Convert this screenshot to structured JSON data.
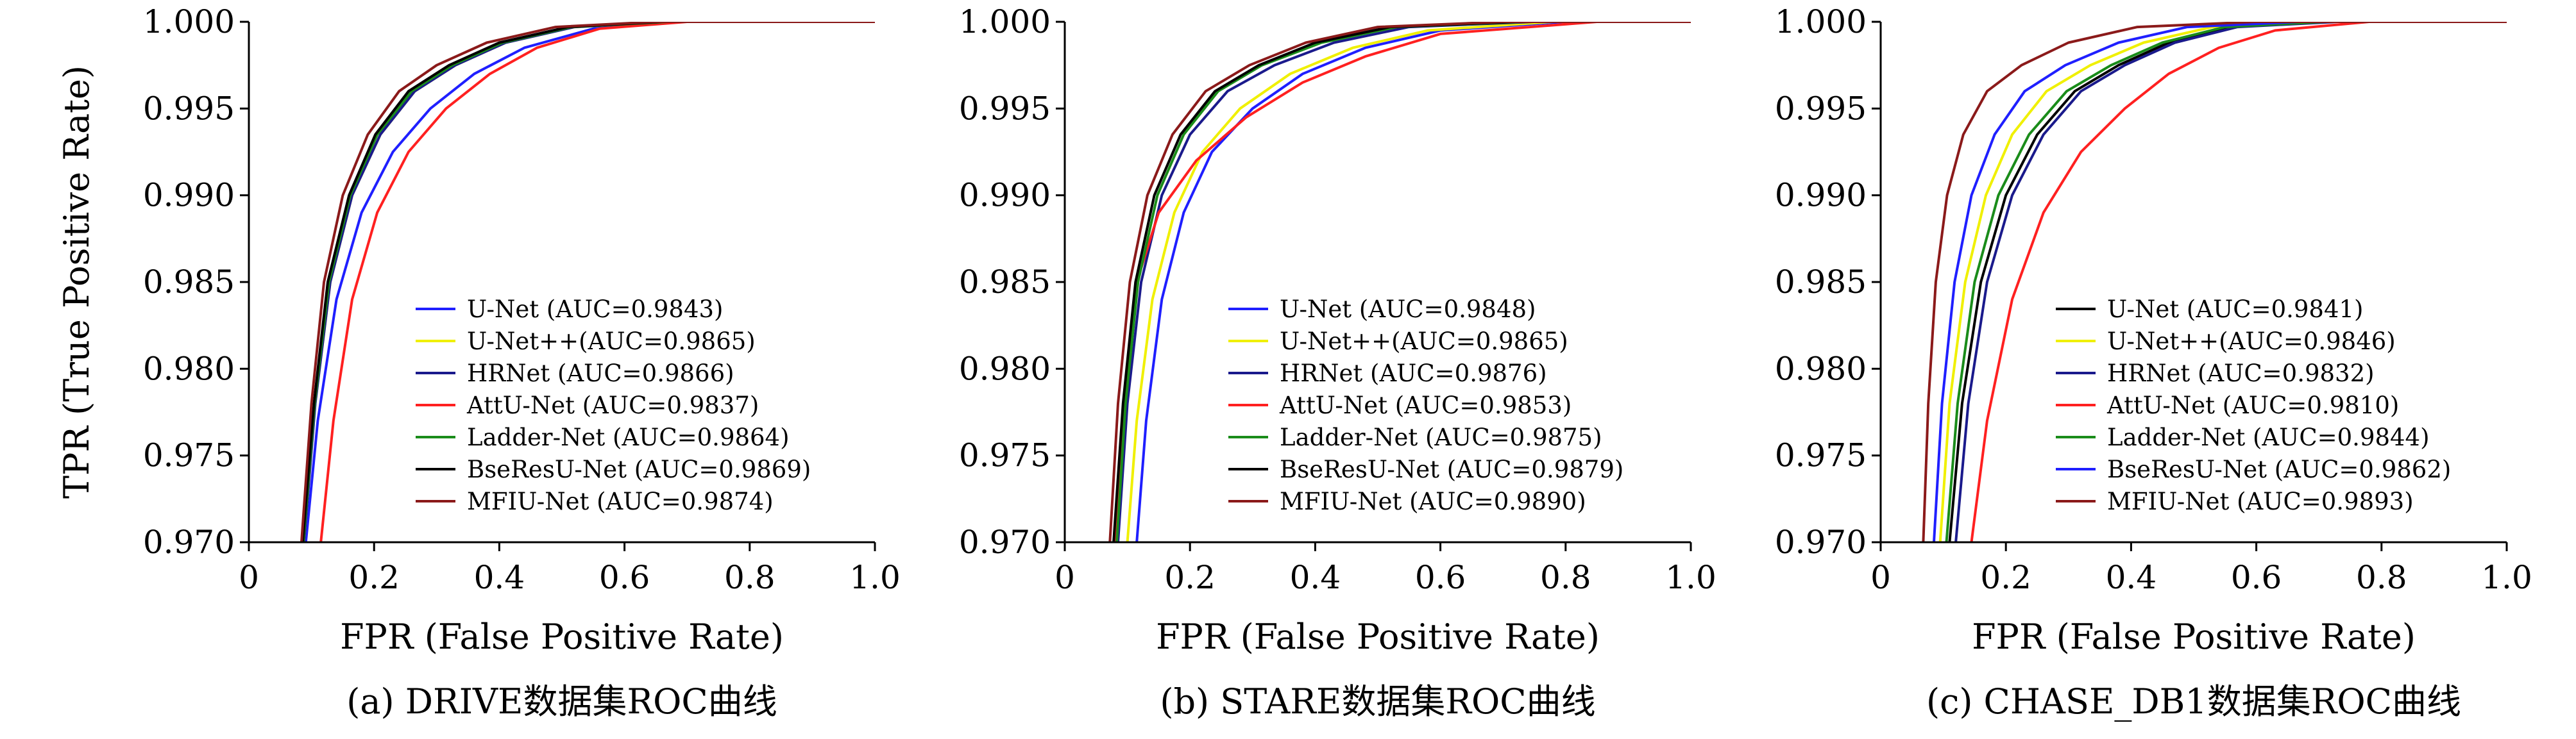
{
  "figure": {
    "ylabel": "TPR (True Positive Rate)"
  },
  "chart_data": [
    {
      "type": "line",
      "caption": "(a) DRIVE数据集ROC曲线",
      "xlabel": "FPR (False Positive Rate)",
      "ylabel": "TPR (True Positive Rate)",
      "xlim": [
        0,
        1.0
      ],
      "ylim": [
        0.97,
        1.0
      ],
      "x_ticks": [
        "0",
        "0.2",
        "0.4",
        "0.6",
        "0.8",
        "1.0"
      ],
      "y_ticks": [
        "1.000",
        "0.995",
        "0.990",
        "0.985",
        "0.980",
        "0.975",
        "0.970"
      ],
      "legend_position": "lower-right",
      "series": [
        {
          "name": "U-Net (AUC=0.9843)",
          "color": "#1f1fff",
          "x": [
            0.091,
            0.11,
            0.14,
            0.18,
            0.23,
            0.29,
            0.36,
            0.44,
            0.55,
            0.69
          ],
          "y": [
            0.97,
            0.977,
            0.984,
            0.989,
            0.9925,
            0.995,
            0.997,
            0.9985,
            0.9996,
            1.0
          ]
        },
        {
          "name": "U-Net++(AUC=0.9865)",
          "color": "#f0f000",
          "x": [
            0.088,
            0.106,
            0.13,
            0.165,
            0.21,
            0.265,
            0.33,
            0.41,
            0.52,
            0.67
          ],
          "y": [
            0.97,
            0.978,
            0.985,
            0.99,
            0.9935,
            0.996,
            0.9975,
            0.9988,
            0.9997,
            1.0
          ]
        },
        {
          "name": "HRNet (AUC=0.9866)",
          "color": "#1a1a8c",
          "x": [
            0.088,
            0.106,
            0.13,
            0.165,
            0.21,
            0.265,
            0.33,
            0.41,
            0.52,
            0.67
          ],
          "y": [
            0.97,
            0.978,
            0.985,
            0.99,
            0.9935,
            0.996,
            0.9975,
            0.9988,
            0.9997,
            1.0
          ]
        },
        {
          "name": "AttU-Net (AUC=0.9837)",
          "color": "#ff2020",
          "x": [
            0.115,
            0.135,
            0.165,
            0.205,
            0.255,
            0.315,
            0.385,
            0.46,
            0.56,
            0.7
          ],
          "y": [
            0.97,
            0.977,
            0.984,
            0.989,
            0.9925,
            0.995,
            0.997,
            0.9985,
            0.9996,
            1.0
          ]
        },
        {
          "name": "Ladder-Net (AUC=0.9864)",
          "color": "#1a8c1a",
          "x": [
            0.087,
            0.105,
            0.128,
            0.162,
            0.205,
            0.26,
            0.325,
            0.405,
            0.515,
            0.67
          ],
          "y": [
            0.97,
            0.978,
            0.985,
            0.99,
            0.9935,
            0.996,
            0.9975,
            0.9988,
            0.9997,
            1.0
          ]
        },
        {
          "name": "BseResU-Net (AUC=0.9869)",
          "color": "#000000",
          "x": [
            0.086,
            0.104,
            0.126,
            0.16,
            0.202,
            0.255,
            0.32,
            0.4,
            0.51,
            0.66
          ],
          "y": [
            0.97,
            0.978,
            0.985,
            0.99,
            0.9935,
            0.996,
            0.9975,
            0.9988,
            0.9997,
            1.0
          ]
        },
        {
          "name": "MFIU-Net (AUC=0.9874)",
          "color": "#8b1a1a",
          "x": [
            0.084,
            0.1,
            0.12,
            0.15,
            0.19,
            0.24,
            0.3,
            0.38,
            0.49,
            0.65
          ],
          "y": [
            0.97,
            0.978,
            0.985,
            0.99,
            0.9935,
            0.996,
            0.9975,
            0.9988,
            0.9997,
            1.0
          ]
        }
      ]
    },
    {
      "type": "line",
      "caption": "(b) STARE数据集ROC曲线",
      "xlabel": "FPR (False Positive Rate)",
      "xlim": [
        0,
        1.0
      ],
      "ylim": [
        0.97,
        1.0
      ],
      "x_ticks": [
        "0",
        "0.2",
        "0.4",
        "0.6",
        "0.8",
        "1.0"
      ],
      "y_ticks": [
        "1.000",
        "0.995",
        "0.990",
        "0.985",
        "0.980",
        "0.975",
        "0.970"
      ],
      "legend_position": "lower-right",
      "series": [
        {
          "name": "U-Net (AUC=0.9848)",
          "color": "#1f1fff",
          "x": [
            0.115,
            0.13,
            0.155,
            0.19,
            0.235,
            0.3,
            0.38,
            0.48,
            0.6,
            0.8
          ],
          "y": [
            0.97,
            0.977,
            0.984,
            0.989,
            0.9925,
            0.995,
            0.997,
            0.9985,
            0.9995,
            1.0
          ]
        },
        {
          "name": "U-Net++(AUC=0.9865)",
          "color": "#f0f000",
          "x": [
            0.1,
            0.115,
            0.14,
            0.175,
            0.22,
            0.28,
            0.36,
            0.46,
            0.58,
            0.78
          ],
          "y": [
            0.97,
            0.977,
            0.984,
            0.989,
            0.9925,
            0.995,
            0.997,
            0.9985,
            0.9995,
            1.0
          ]
        },
        {
          "name": "HRNet (AUC=0.9876)",
          "color": "#1a1a8c",
          "x": [
            0.085,
            0.1,
            0.122,
            0.155,
            0.2,
            0.26,
            0.335,
            0.43,
            0.55,
            0.75
          ],
          "y": [
            0.97,
            0.978,
            0.985,
            0.99,
            0.9935,
            0.996,
            0.9975,
            0.9988,
            0.9997,
            1.0
          ]
        },
        {
          "name": "AttU-Net (AUC=0.9853)",
          "color": "#ff2020",
          "x": [
            0.08,
            0.095,
            0.115,
            0.15,
            0.21,
            0.29,
            0.38,
            0.48,
            0.6,
            0.85
          ],
          "y": [
            0.97,
            0.978,
            0.985,
            0.989,
            0.992,
            0.9945,
            0.9965,
            0.998,
            0.9993,
            1.0
          ]
        },
        {
          "name": "Ladder-Net (AUC=0.9875)",
          "color": "#1a8c1a",
          "x": [
            0.083,
            0.097,
            0.117,
            0.148,
            0.19,
            0.245,
            0.315,
            0.41,
            0.53,
            0.73
          ],
          "y": [
            0.97,
            0.978,
            0.985,
            0.99,
            0.9935,
            0.996,
            0.9975,
            0.9988,
            0.9997,
            1.0
          ]
        },
        {
          "name": "BseResU-Net (AUC=0.9879)",
          "color": "#000000",
          "x": [
            0.078,
            0.093,
            0.113,
            0.143,
            0.185,
            0.24,
            0.31,
            0.4,
            0.52,
            0.72
          ],
          "y": [
            0.97,
            0.978,
            0.985,
            0.99,
            0.9935,
            0.996,
            0.9975,
            0.9988,
            0.9997,
            1.0
          ]
        },
        {
          "name": "MFIU-Net (AUC=0.9890)",
          "color": "#8b1a1a",
          "x": [
            0.072,
            0.085,
            0.104,
            0.132,
            0.172,
            0.225,
            0.295,
            0.385,
            0.5,
            0.7
          ],
          "y": [
            0.97,
            0.978,
            0.985,
            0.99,
            0.9935,
            0.996,
            0.9975,
            0.9988,
            0.9997,
            1.0
          ]
        }
      ]
    },
    {
      "type": "line",
      "caption": "(c) CHASE_DB1数据集ROC曲线",
      "xlabel": "FPR (False Positive Rate)",
      "xlim": [
        0,
        1.0
      ],
      "ylim": [
        0.97,
        1.0
      ],
      "x_ticks": [
        "0",
        "0.2",
        "0.4",
        "0.6",
        "0.8",
        "1.0"
      ],
      "y_ticks": [
        "1.000",
        "0.995",
        "0.990",
        "0.985",
        "0.980",
        "0.975",
        "0.970"
      ],
      "legend_position": "lower-right",
      "series": [
        {
          "name": "U-Net (AUC=0.9841)",
          "color": "#000000",
          "x": [
            0.11,
            0.13,
            0.16,
            0.2,
            0.25,
            0.31,
            0.38,
            0.46,
            0.56,
            0.72
          ],
          "y": [
            0.97,
            0.978,
            0.985,
            0.99,
            0.9935,
            0.996,
            0.9975,
            0.9988,
            0.9997,
            1.0
          ]
        },
        {
          "name": "U-Net++(AUC=0.9846)",
          "color": "#f0f000",
          "x": [
            0.095,
            0.11,
            0.135,
            0.168,
            0.21,
            0.265,
            0.335,
            0.42,
            0.53,
            0.7
          ],
          "y": [
            0.97,
            0.978,
            0.985,
            0.99,
            0.9935,
            0.996,
            0.9975,
            0.9988,
            0.9997,
            1.0
          ]
        },
        {
          "name": "HRNet (AUC=0.9832)",
          "color": "#1a1a8c",
          "x": [
            0.12,
            0.14,
            0.17,
            0.21,
            0.26,
            0.32,
            0.39,
            0.47,
            0.57,
            0.73
          ],
          "y": [
            0.97,
            0.978,
            0.985,
            0.99,
            0.9935,
            0.996,
            0.9975,
            0.9988,
            0.9997,
            1.0
          ]
        },
        {
          "name": "AttU-Net (AUC=0.9810)",
          "color": "#ff2020",
          "x": [
            0.145,
            0.17,
            0.21,
            0.26,
            0.32,
            0.39,
            0.46,
            0.54,
            0.63,
            0.78
          ],
          "y": [
            0.97,
            0.977,
            0.984,
            0.989,
            0.9925,
            0.995,
            0.997,
            0.9985,
            0.9995,
            1.0
          ]
        },
        {
          "name": "Ladder-Net (AUC=0.9844)",
          "color": "#1a8c1a",
          "x": [
            0.105,
            0.123,
            0.15,
            0.188,
            0.237,
            0.297,
            0.368,
            0.45,
            0.55,
            0.71
          ],
          "y": [
            0.97,
            0.978,
            0.985,
            0.99,
            0.9935,
            0.996,
            0.9975,
            0.9988,
            0.9997,
            1.0
          ]
        },
        {
          "name": "BseResU-Net (AUC=0.9862)",
          "color": "#1f1fff",
          "x": [
            0.085,
            0.098,
            0.118,
            0.145,
            0.182,
            0.23,
            0.295,
            0.38,
            0.49,
            0.67
          ],
          "y": [
            0.97,
            0.978,
            0.985,
            0.99,
            0.9935,
            0.996,
            0.9975,
            0.9988,
            0.9997,
            1.0
          ]
        },
        {
          "name": "MFIU-Net (AUC=0.9893)",
          "color": "#8b1a1a",
          "x": [
            0.068,
            0.076,
            0.088,
            0.106,
            0.132,
            0.17,
            0.225,
            0.3,
            0.41,
            0.6
          ],
          "y": [
            0.97,
            0.978,
            0.985,
            0.99,
            0.9935,
            0.996,
            0.9975,
            0.9988,
            0.9997,
            1.0
          ]
        }
      ]
    }
  ]
}
